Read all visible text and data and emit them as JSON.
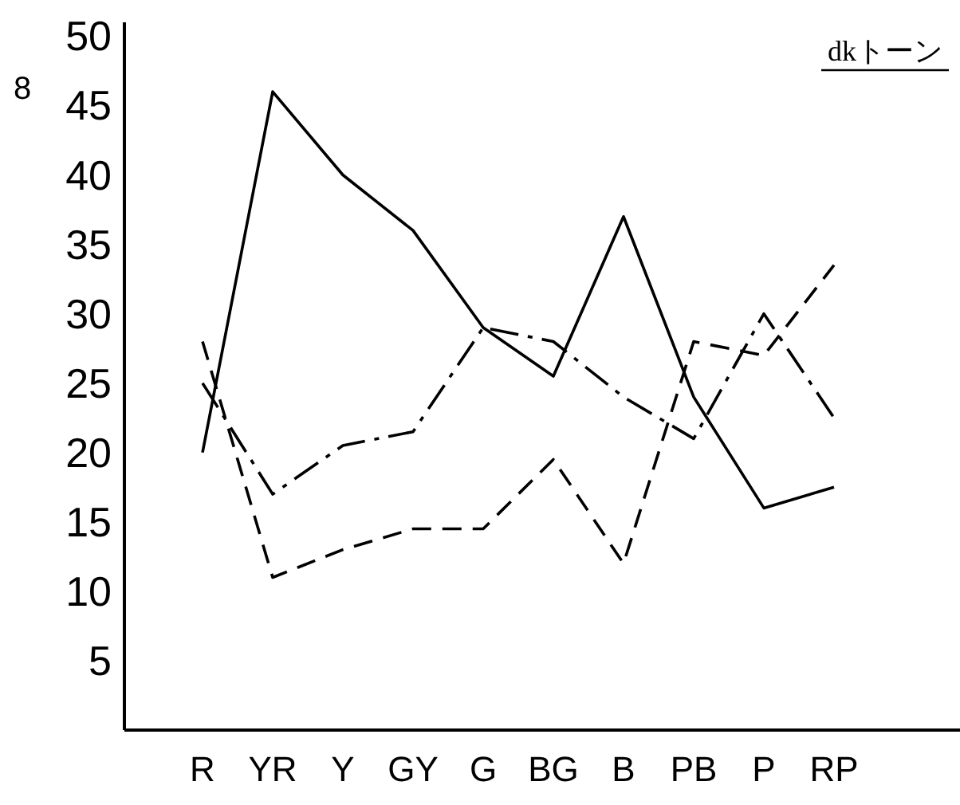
{
  "chart_data": {
    "type": "line",
    "title": "dkトーン",
    "annotations": [
      "8"
    ],
    "categories": [
      "R",
      "YR",
      "Y",
      "GY",
      "G",
      "BG",
      "B",
      "PB",
      "P",
      "RP"
    ],
    "ylim": [
      0,
      51
    ],
    "yticks": [
      5,
      10,
      15,
      20,
      25,
      30,
      35,
      40,
      45,
      50
    ],
    "grid": false,
    "marker": "none",
    "series": [
      {
        "color": "#000000",
        "line_style": "solid",
        "values": [
          20,
          46,
          40,
          36,
          29,
          25.5,
          37,
          24,
          16,
          17.5
        ]
      },
      {
        "color": "#000000",
        "line_style": "dashdot",
        "values": [
          25,
          17,
          20.5,
          21.5,
          29,
          28,
          24,
          21,
          30,
          22.5
        ]
      },
      {
        "color": "#000000",
        "line_style": "dashed",
        "values": [
          28,
          11,
          13,
          14.5,
          14.5,
          19.5,
          12,
          28,
          27,
          33.5
        ]
      }
    ]
  }
}
